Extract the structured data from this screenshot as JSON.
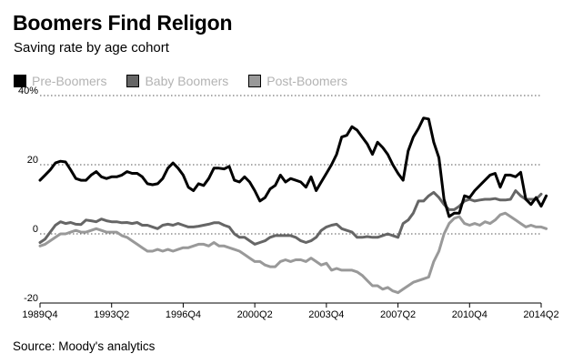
{
  "header": {
    "title": "Boomers Find Religon",
    "subtitle": "Saving rate by age cohort"
  },
  "legend": [
    {
      "label": "Pre-Boomers",
      "color": "#000000"
    },
    {
      "label": "Baby Boomers",
      "color": "#666666"
    },
    {
      "label": "Post-Boomers",
      "color": "#999999"
    }
  ],
  "footer": {
    "source": "Source: Moody's analytics"
  },
  "chart_data": {
    "type": "line",
    "title": "Boomers Find Religon",
    "subtitle": "Saving rate by age cohort",
    "xlabel": "",
    "ylabel": "",
    "x_start": 1989.75,
    "x_step": 0.25,
    "xlim": [
      1989.75,
      2014.25
    ],
    "ylim": [
      -20,
      40
    ],
    "yticks": [
      {
        "value": 40,
        "label": "40%"
      },
      {
        "value": 20,
        "label": "20"
      },
      {
        "value": 0,
        "label": "0"
      },
      {
        "value": -20,
        "label": "-20"
      }
    ],
    "xticks": [
      {
        "value": 1989.75,
        "label": "1989Q4"
      },
      {
        "value": 1993.25,
        "label": "1993Q2"
      },
      {
        "value": 1996.75,
        "label": "1996Q4"
      },
      {
        "value": 2000.25,
        "label": "2000Q2"
      },
      {
        "value": 2003.75,
        "label": "2003Q4"
      },
      {
        "value": 2007.25,
        "label": "2007Q2"
      },
      {
        "value": 2010.75,
        "label": "2010Q4"
      },
      {
        "value": 2014.25,
        "label": "2014Q2"
      }
    ],
    "grid": "dotted-horizontal",
    "series": [
      {
        "name": "Pre-Boomers",
        "color": "#000000",
        "values": [
          15.5,
          17,
          18.5,
          20.5,
          21,
          20.8,
          18.5,
          16,
          15.5,
          15.5,
          17,
          18,
          16.5,
          16,
          16.5,
          16.5,
          17,
          18,
          17.5,
          17.5,
          16.5,
          14.5,
          14.2,
          14.5,
          16,
          19,
          20.5,
          19,
          17,
          13.5,
          12.5,
          14.5,
          14,
          16,
          19,
          19,
          18.8,
          19.5,
          15.5,
          15,
          16.5,
          15,
          12.5,
          9.5,
          10.5,
          13,
          14,
          17,
          15,
          16,
          15.5,
          15,
          13.5,
          16.5,
          12.5,
          15,
          17.5,
          20,
          23,
          28,
          28.5,
          31,
          30,
          28,
          26,
          23,
          26.5,
          25,
          23,
          20,
          17.5,
          15.5,
          24,
          28,
          30.5,
          33.5,
          33.2,
          26.5,
          22,
          10,
          5,
          6,
          6,
          11,
          10.5,
          12.5,
          14,
          15.5,
          17,
          17.5,
          13.5,
          17,
          17,
          16.5,
          17.8,
          10,
          8.5,
          10.5,
          8,
          11
        ]
      },
      {
        "name": "Baby Boomers",
        "color": "#666666",
        "values": [
          -2.5,
          -1.5,
          0.5,
          2.5,
          3.5,
          3,
          3.3,
          2.8,
          2.7,
          4,
          3.8,
          3.5,
          4.3,
          3.8,
          3.5,
          3.5,
          3.2,
          3.3,
          3,
          3.3,
          2.5,
          2.5,
          2,
          1.5,
          2.5,
          2.8,
          2.5,
          3,
          2.5,
          2,
          2,
          2.2,
          2.5,
          2.8,
          3.2,
          3.2,
          2.5,
          2,
          0,
          -1,
          -1,
          -2,
          -3,
          -2.5,
          -2,
          -1,
          -0.5,
          -0.5,
          -0.5,
          -0.5,
          -1,
          -2,
          -2.5,
          -2,
          -1,
          1,
          2,
          2.5,
          2.8,
          1.5,
          1,
          0.5,
          -1,
          -1,
          -0.8,
          -1,
          -1,
          -0.5,
          0,
          -0.5,
          -1,
          3,
          4,
          6,
          9.5,
          9.5,
          11,
          12,
          10.5,
          8.5,
          7,
          7,
          8,
          9.5,
          10,
          9.5,
          9.8,
          10,
          10,
          10.2,
          9.8,
          9.8,
          10,
          12.5,
          11,
          10,
          10,
          10,
          11.5
        ]
      },
      {
        "name": "Post-Boomers",
        "color": "#999999",
        "values": [
          -3.5,
          -3,
          -2,
          -1,
          0,
          0,
          0.5,
          1,
          0.5,
          0.5,
          1,
          1.5,
          1,
          0.5,
          0.5,
          0.5,
          -0.5,
          -1,
          -2,
          -3,
          -4,
          -5,
          -5,
          -4.5,
          -5,
          -4.5,
          -5,
          -4.5,
          -4,
          -4,
          -3.5,
          -3,
          -3,
          -3.5,
          -2.5,
          -3.5,
          -3.5,
          -4,
          -4.5,
          -5,
          -6,
          -7,
          -8,
          -8,
          -9,
          -9.5,
          -9.5,
          -8,
          -7.5,
          -8,
          -7.5,
          -7.5,
          -8,
          -7,
          -8,
          -9,
          -8.5,
          -10.5,
          -10,
          -10.5,
          -10.5,
          -10.5,
          -11,
          -12,
          -13.5,
          -15,
          -15,
          -16,
          -15.5,
          -16.5,
          -17,
          -16,
          -15,
          -14,
          -13.5,
          -13,
          -12.5,
          -8,
          -5,
          0,
          3,
          4.5,
          5,
          3,
          2.5,
          3,
          2.5,
          3.5,
          3,
          4,
          5.5,
          6,
          5,
          4,
          3,
          2,
          2.5,
          2,
          2,
          1.5
        ]
      }
    ]
  }
}
